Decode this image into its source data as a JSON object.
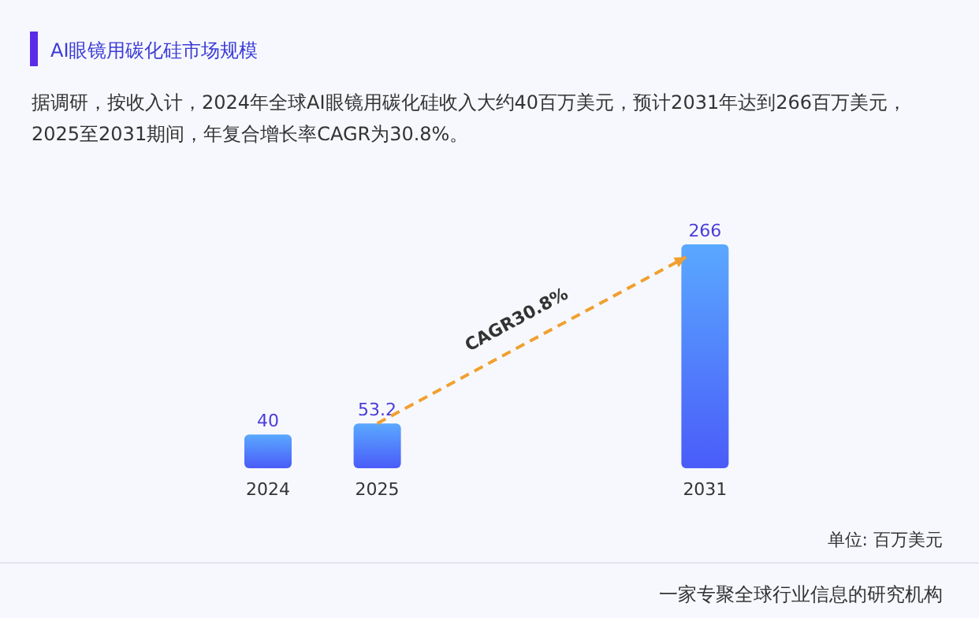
{
  "chart_data": {
    "type": "bar",
    "title": "AI眼镜用碳化硅市场规模",
    "subtitle": "据调研，按收入计，2024年全球AI眼镜用碳化硅收入大约40百万美元，预计2031年达到266百万美元，2025至2031期间，年复合增长率CAGR为30.8%。",
    "categories": [
      "2024",
      "2025",
      null,
      null,
      "2031"
    ],
    "values": [
      40,
      53.2,
      null,
      null,
      266
    ],
    "color": "#4a5cf8",
    "data_labels": true,
    "annotations": [
      "CAGR30.8%",
      "单位: 百万美元",
      "一家专聚全球行业信息的研究机构"
    ]
  }
}
